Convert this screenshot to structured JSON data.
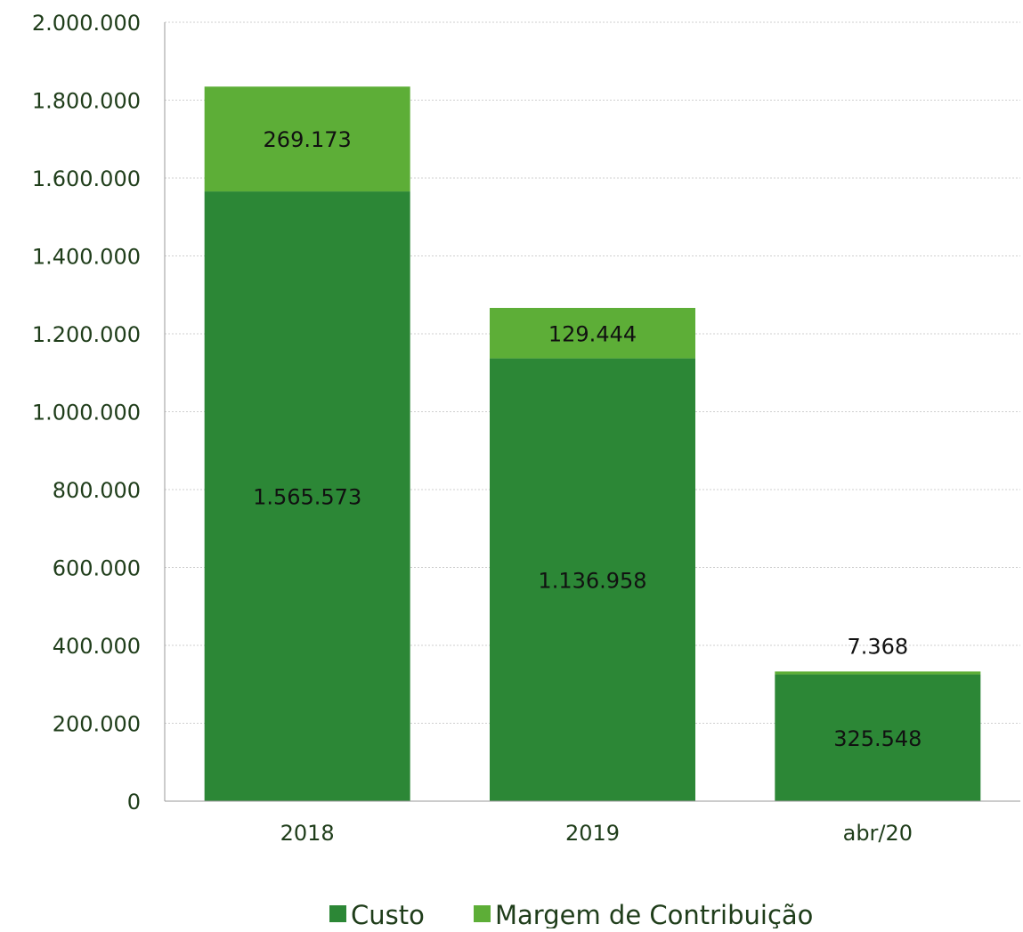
{
  "chart_data": {
    "type": "bar",
    "stacked": true,
    "categories": [
      "2018",
      "2019",
      "abr/20"
    ],
    "series": [
      {
        "name": "Custo",
        "values": [
          1565573,
          1136958,
          325548
        ],
        "labels": [
          "1.565.573",
          "1.136.958",
          "325.548"
        ],
        "color": "#2c8736"
      },
      {
        "name": "Margem de Contribuição",
        "values": [
          269173,
          129444,
          7368
        ],
        "labels": [
          "269.173",
          "129.444",
          "7.368"
        ],
        "color": "#5dae37"
      }
    ],
    "ylim": [
      0,
      2000000
    ],
    "yticks": [
      0,
      200000,
      400000,
      600000,
      800000,
      1000000,
      1200000,
      1400000,
      1600000,
      1800000,
      2000000
    ],
    "ytick_labels": [
      "0",
      "200.000",
      "400.000",
      "600.000",
      "800.000",
      "1.000.000",
      "1.200.000",
      "1.400.000",
      "1.600.000",
      "1.800.000",
      "2.000.000"
    ],
    "grid": true,
    "legend_position": "bottom",
    "title": "",
    "xlabel": "",
    "ylabel": ""
  }
}
